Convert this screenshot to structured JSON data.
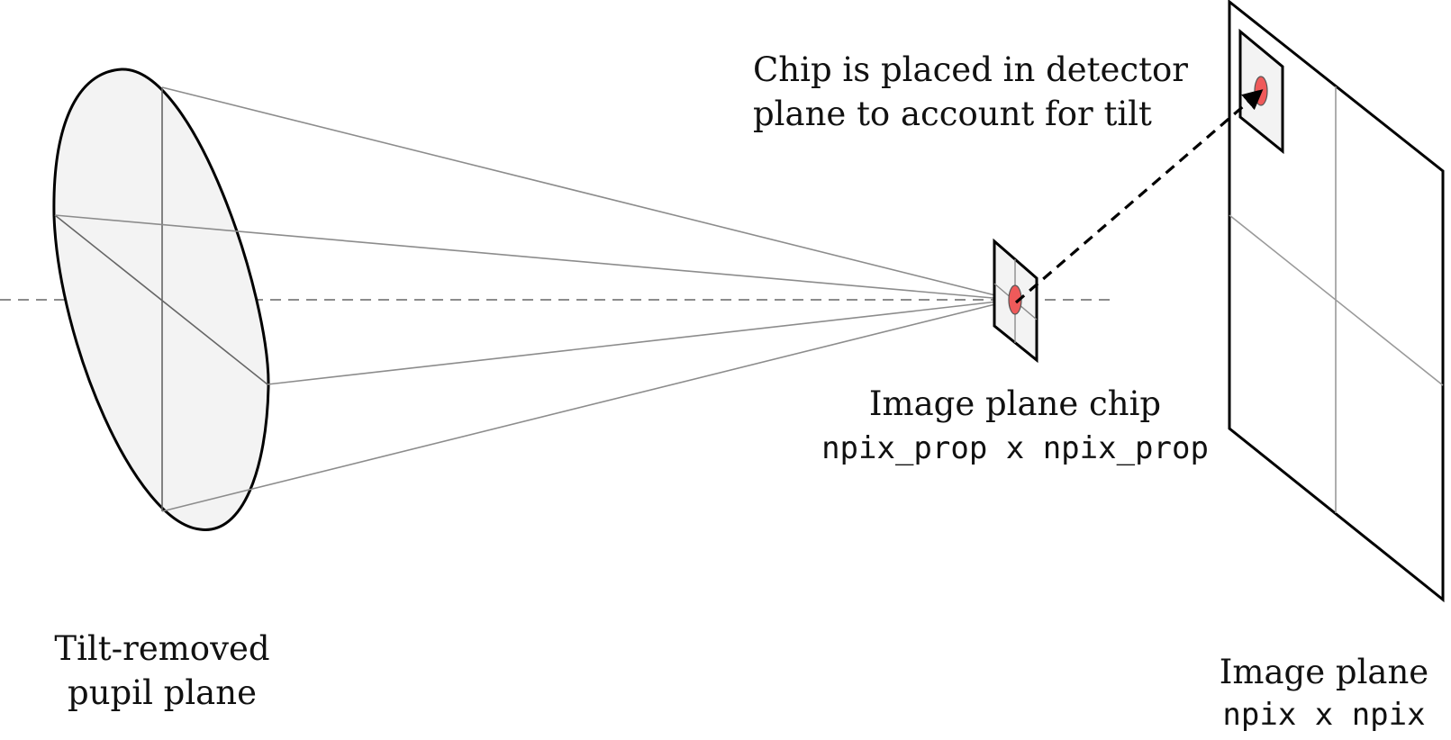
{
  "labels": {
    "chip_note_line1": "Chip is placed in detector",
    "chip_note_line2": "plane to account for tilt",
    "chip_title": "Image plane chip",
    "chip_size": "npix_prop x npix_prop",
    "pupil_line1": "Tilt-removed",
    "pupil_line2": "pupil plane",
    "image_title": "Image plane",
    "image_size": "npix x npix"
  },
  "colors": {
    "outline": "#000000",
    "plane_fill": "#f3f3f3",
    "ray": "#8c8c8c",
    "axis": "#666666",
    "psf_spot": "#ef5a5a"
  }
}
